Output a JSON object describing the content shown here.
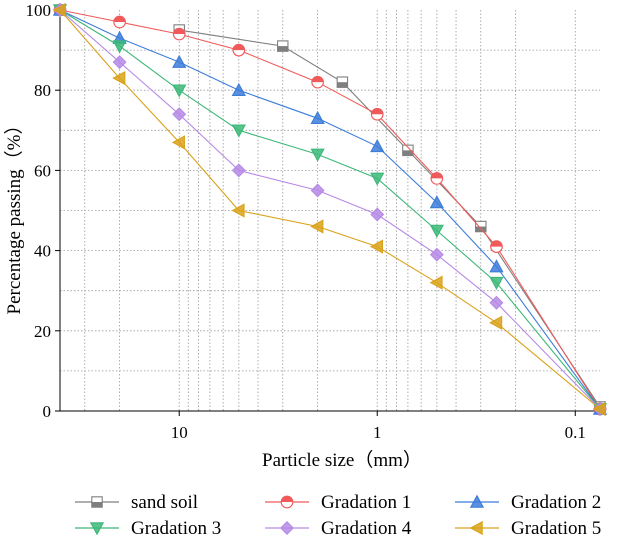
{
  "chart_data": {
    "type": "line",
    "title": "",
    "xlabel": "Particle size（mm）",
    "ylabel": "Percentage passing（%）",
    "x_scale": "log",
    "x_reversed": true,
    "xlim": [
      40,
      0.075
    ],
    "ylim": [
      0,
      100
    ],
    "x_tick_values": [
      10,
      1,
      0.1
    ],
    "x_tick_labels": [
      "10",
      "1",
      "0.1"
    ],
    "y_tick_values": [
      0,
      20,
      40,
      60,
      80,
      100
    ],
    "y_tick_labels": [
      "0",
      "20",
      "40",
      "60",
      "80",
      "100"
    ],
    "grid": true,
    "legend_position": "bottom",
    "x": [
      40,
      20,
      10,
      5,
      2,
      1,
      0.5,
      0.25,
      0.075
    ],
    "series": [
      {
        "name": "sand soil",
        "marker": "square",
        "color": "#7f7f7f",
        "x": [
          10,
          3,
          1.5,
          0.7,
          0.3,
          0.075
        ],
        "values": [
          95,
          91,
          82,
          65,
          46,
          1
        ]
      },
      {
        "name": "Gradation 1",
        "marker": "circle",
        "color": "#f05a5a",
        "values": [
          100,
          97,
          94,
          90,
          82,
          74,
          58,
          41,
          0.5
        ]
      },
      {
        "name": "Gradation 2",
        "marker": "triangle-up",
        "color": "#3c7dd9",
        "values": [
          100,
          93,
          87,
          80,
          73,
          66,
          52,
          36,
          0.5
        ]
      },
      {
        "name": "Gradation 3",
        "marker": "triangle-down",
        "color": "#3cb878",
        "values": [
          100,
          91,
          80,
          70,
          64,
          58,
          45,
          32,
          0.5
        ]
      },
      {
        "name": "Gradation 4",
        "marker": "diamond",
        "color": "#b68ae6",
        "values": [
          100,
          87,
          74,
          60,
          55,
          49,
          39,
          27,
          0.5
        ]
      },
      {
        "name": "Gradation 5",
        "marker": "triangle-left",
        "color": "#d9a21a",
        "values": [
          100,
          83,
          67,
          50,
          46,
          41,
          32,
          22,
          0.5
        ]
      }
    ]
  }
}
